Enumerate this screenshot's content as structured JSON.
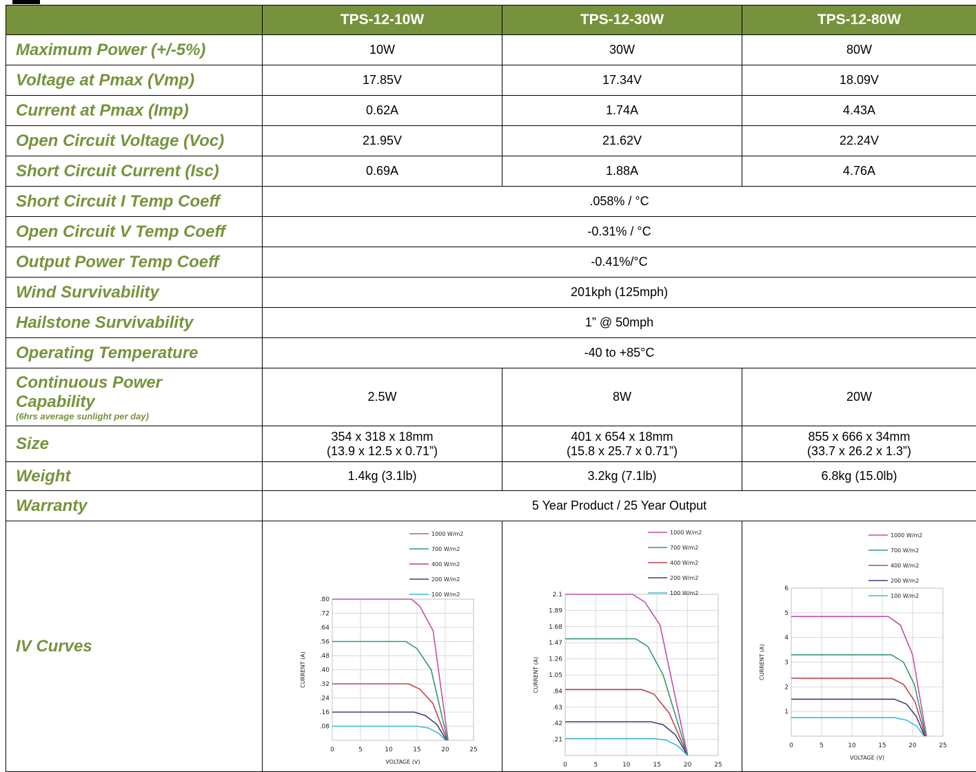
{
  "header": {
    "columns": [
      "",
      "TPS-12-10W",
      "TPS-12-30W",
      "TPS-12-80W"
    ]
  },
  "rows": [
    {
      "label": "Maximum Power (+/-5%)",
      "values": [
        "10W",
        "30W",
        "80W"
      ]
    },
    {
      "label": "Voltage at Pmax (Vmp)",
      "values": [
        "17.85V",
        "17.34V",
        "18.09V"
      ]
    },
    {
      "label": "Current at Pmax (Imp)",
      "values": [
        "0.62A",
        "1.74A",
        "4.43A"
      ]
    },
    {
      "label": "Open Circuit Voltage (Voc)",
      "values": [
        "21.95V",
        "21.62V",
        "22.24V"
      ]
    },
    {
      "label": "Short Circuit Current (Isc)",
      "values": [
        "0.69A",
        "1.88A",
        "4.76A"
      ]
    },
    {
      "label": "Short Circuit I Temp Coeff",
      "value": ".058% / °C"
    },
    {
      "label": "Open Circuit V Temp Coeff",
      "value": "-0.31% / °C"
    },
    {
      "label": "Output Power Temp Coeff",
      "value": "-0.41%/°C"
    },
    {
      "label": "Wind Survivability",
      "value": "201kph (125mph)"
    },
    {
      "label": "Hailstone Survivability",
      "value": "1” @ 50mph"
    },
    {
      "label": "Operating Temperature",
      "value": "-40 to +85°C"
    },
    {
      "label_line1": "Continuous Power",
      "label_line2": "Capability",
      "label_note": "(6hrs average sunlight per day)",
      "values": [
        "2.5W",
        "8W",
        "20W"
      ]
    },
    {
      "label": "Size",
      "values": [
        [
          "354 x 318 x 18mm",
          "(13.9 x 12.5 x 0.71”)"
        ],
        [
          "401 x 654 x 18mm",
          "(15.8 x 25.7 x 0.71”)"
        ],
        [
          "855 x 666 x 34mm",
          "(33.7 x 26.2 x 1.3”)"
        ]
      ]
    },
    {
      "label": "Weight",
      "values": [
        "1.4kg (3.1lb)",
        "3.2kg (7.1lb)",
        "6.8kg (15.0lb)"
      ]
    },
    {
      "label": "Warranty",
      "value": "5 Year Product / 25 Year Output"
    },
    {
      "label": "IV Curves"
    }
  ],
  "chart_data": [
    {
      "type": "line",
      "xlabel": "VOLTAGE (V)",
      "ylabel": "CURRENT (A)",
      "xlim": [
        0,
        25
      ],
      "ylim": [
        0,
        0.8
      ],
      "xticks": [
        "0",
        "5",
        "10",
        "15",
        "20",
        "25"
      ],
      "yticks": [
        ".08",
        ".16",
        ".24",
        ".32",
        ".40",
        ".48",
        ".56",
        ".64",
        ".72",
        ".80"
      ],
      "grid": true,
      "legend": "top-right",
      "series": [
        {
          "name": "1000 W/m2",
          "color": "#c04fa8",
          "points": [
            [
              0,
              0.8
            ],
            [
              14,
              0.8
            ],
            [
              15.5,
              0.76
            ],
            [
              17.85,
              0.62
            ],
            [
              20.5,
              0
            ]
          ]
        },
        {
          "name": "700 W/m2",
          "color": "#2e9a6b",
          "points": [
            [
              0,
              0.56
            ],
            [
              13,
              0.56
            ],
            [
              15,
              0.52
            ],
            [
              17.5,
              0.4
            ],
            [
              20.4,
              0
            ]
          ]
        },
        {
          "name": "400 W/m2",
          "color": "#c0434e",
          "points": [
            [
              0,
              0.32
            ],
            [
              13.5,
              0.32
            ],
            [
              15.5,
              0.29
            ],
            [
              17.8,
              0.21
            ],
            [
              20.3,
              0
            ]
          ]
        },
        {
          "name": "200 W/m2",
          "color": "#3b3f7a",
          "points": [
            [
              0,
              0.16
            ],
            [
              14.5,
              0.16
            ],
            [
              16.5,
              0.14
            ],
            [
              18.5,
              0.09
            ],
            [
              20.2,
              0
            ]
          ]
        },
        {
          "name": "100 W/m2",
          "color": "#3cb8d6",
          "points": [
            [
              0,
              0.08
            ],
            [
              15,
              0.08
            ],
            [
              17,
              0.07
            ],
            [
              18.8,
              0.04
            ],
            [
              20.1,
              0
            ]
          ]
        }
      ]
    },
    {
      "type": "line",
      "xlabel": "VOLTAGE (V)",
      "ylabel": "CURRENT (A)",
      "xlim": [
        0,
        25
      ],
      "ylim": [
        0,
        2.1
      ],
      "xticks": [
        "0",
        "5",
        "10",
        "15",
        "20",
        "25"
      ],
      "yticks": [
        ".21",
        ".42",
        ".63",
        ".84",
        "1.05",
        "1.26",
        "1.47",
        "1.68",
        "1.89",
        "2.1"
      ],
      "grid": true,
      "legend": "top-right",
      "series": [
        {
          "name": "1000 W/m2",
          "color": "#c04fa8",
          "points": [
            [
              0,
              2.1
            ],
            [
              11,
              2.1
            ],
            [
              13,
              2.0
            ],
            [
              15.5,
              1.7
            ],
            [
              20,
              0
            ]
          ]
        },
        {
          "name": "700 W/m2",
          "color": "#2e9a6b",
          "points": [
            [
              0,
              1.52
            ],
            [
              11.5,
              1.52
            ],
            [
              13.5,
              1.42
            ],
            [
              16,
              1.05
            ],
            [
              20,
              0
            ]
          ]
        },
        {
          "name": "400 W/m2",
          "color": "#c0434e",
          "points": [
            [
              0,
              0.86
            ],
            [
              12.5,
              0.86
            ],
            [
              14.5,
              0.8
            ],
            [
              17,
              0.55
            ],
            [
              20,
              0
            ]
          ]
        },
        {
          "name": "200 W/m2",
          "color": "#3b3f7a",
          "points": [
            [
              0,
              0.44
            ],
            [
              14,
              0.44
            ],
            [
              16,
              0.4
            ],
            [
              18,
              0.27
            ],
            [
              20,
              0
            ]
          ]
        },
        {
          "name": "100 W/m2",
          "color": "#3cb8d6",
          "points": [
            [
              0,
              0.22
            ],
            [
              14.5,
              0.22
            ],
            [
              16.5,
              0.2
            ],
            [
              18.3,
              0.13
            ],
            [
              20,
              0
            ]
          ]
        }
      ]
    },
    {
      "type": "line",
      "xlabel": "VOLTAGE (V)",
      "ylabel": "CURRENT (A)",
      "xlim": [
        0,
        25
      ],
      "ylim": [
        0,
        6
      ],
      "xticks": [
        "0",
        "5",
        "10",
        "15",
        "20",
        "25"
      ],
      "yticks": [
        "1",
        "2",
        "3",
        "4",
        "5",
        "6"
      ],
      "grid": true,
      "legend": "top-right",
      "series": [
        {
          "name": "1000 W/m2",
          "color": "#c04fa8",
          "points": [
            [
              0,
              4.85
            ],
            [
              16,
              4.85
            ],
            [
              18,
              4.5
            ],
            [
              20,
              3.3
            ],
            [
              22.3,
              0
            ]
          ]
        },
        {
          "name": "700 W/m2",
          "color": "#2e9a6b",
          "points": [
            [
              0,
              3.3
            ],
            [
              16.5,
              3.3
            ],
            [
              18.5,
              3.0
            ],
            [
              20.3,
              2.1
            ],
            [
              22.2,
              0
            ]
          ]
        },
        {
          "name": "400 W/m2",
          "color": "#c0434e",
          "points": [
            [
              0,
              2.35
            ],
            [
              16.5,
              2.35
            ],
            [
              18.5,
              2.1
            ],
            [
              20.4,
              1.4
            ],
            [
              22.1,
              0
            ]
          ]
        },
        {
          "name": "200 W/m2",
          "color": "#3b3f7a",
          "points": [
            [
              0,
              1.5
            ],
            [
              17,
              1.5
            ],
            [
              19,
              1.3
            ],
            [
              20.6,
              0.8
            ],
            [
              22,
              0
            ]
          ]
        },
        {
          "name": "100 W/m2",
          "color": "#3cb8d6",
          "points": [
            [
              0,
              0.75
            ],
            [
              17,
              0.75
            ],
            [
              19,
              0.65
            ],
            [
              20.7,
              0.4
            ],
            [
              21.9,
              0
            ]
          ]
        }
      ]
    }
  ]
}
